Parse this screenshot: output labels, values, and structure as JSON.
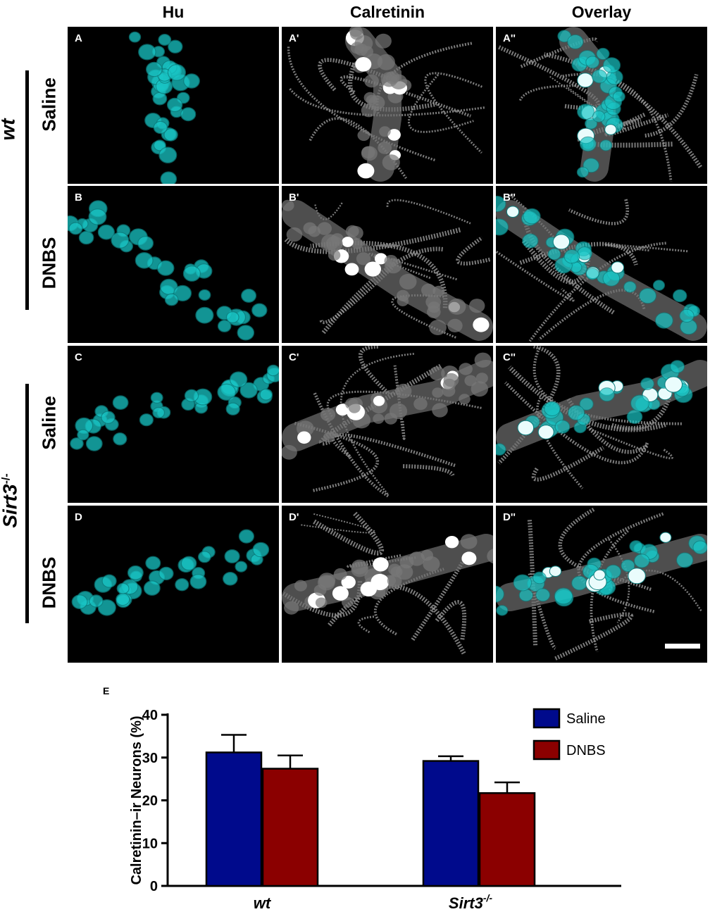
{
  "figure": {
    "columns": [
      "Hu",
      "Calretinin",
      "Overlay"
    ],
    "rows": [
      {
        "group": "wt",
        "condition": "Saline",
        "labels": [
          "A",
          "A'",
          "A''"
        ]
      },
      {
        "group": "wt",
        "condition": "DNBS",
        "labels": [
          "B",
          "B'",
          "B''"
        ]
      },
      {
        "group": "Sirt3",
        "condition": "Saline",
        "labels": [
          "C",
          "C'",
          "C''"
        ]
      },
      {
        "group": "Sirt3",
        "condition": "DNBS",
        "labels": [
          "D",
          "D'",
          "D''"
        ]
      }
    ],
    "group_labels": {
      "wt": "wt",
      "sirt3_main": "Sirt3",
      "sirt3_sup": "-/-"
    },
    "colors": {
      "hu": "#19c6c6",
      "calretinin": "#ffffff",
      "background": "#000000"
    }
  },
  "chart_data": {
    "type": "bar",
    "panel_label": "E",
    "categories": [
      "wt",
      "Sirt3-/-"
    ],
    "series": [
      {
        "name": "Saline",
        "color": "#000a8c",
        "values": [
          31.2,
          29.2
        ],
        "errors": [
          4.1,
          1.1
        ]
      },
      {
        "name": "DNBS",
        "color": "#8b0000",
        "values": [
          27.4,
          21.7
        ],
        "errors": [
          3.1,
          2.5
        ]
      }
    ],
    "ylabel": "Calretinin–ir Neurons (%)",
    "xlabel": "",
    "ylim": [
      0,
      40
    ],
    "yticks": [
      0,
      10,
      20,
      30,
      40
    ],
    "legend_position": "top-right",
    "grid": false
  }
}
